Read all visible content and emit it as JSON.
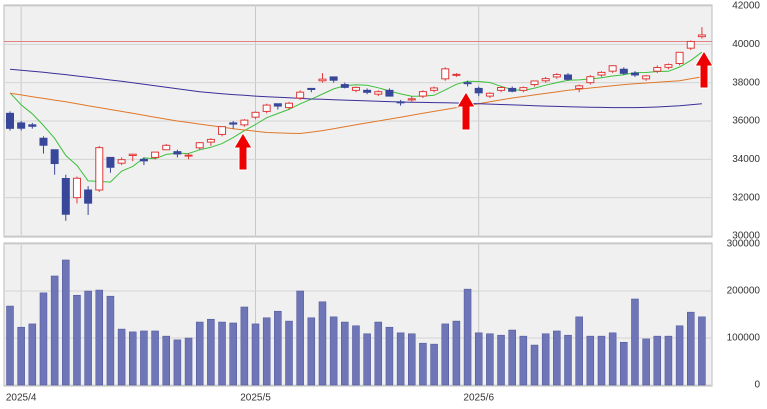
{
  "chart_data": [
    {
      "type": "candlestick",
      "open": [
        36400,
        35900,
        35800,
        35100,
        34500,
        33000,
        32000,
        32400,
        32400,
        34100,
        33800,
        34200,
        34000,
        34100,
        34500,
        34400,
        34200,
        34600,
        34900,
        35300,
        35900,
        35800,
        36200,
        36500,
        36900,
        36700,
        37200,
        37700,
        38100,
        38300,
        37900,
        37600,
        37600,
        37400,
        37600,
        37000,
        37100,
        37300,
        37600,
        38200,
        38400,
        38000,
        37700,
        37300,
        37600,
        37700,
        37600,
        37900,
        38100,
        38300,
        38400,
        37700,
        38000,
        38400,
        38600,
        38700,
        38500,
        38200,
        38600,
        38800,
        39000,
        39800,
        40400
      ],
      "high": [
        36500,
        36000,
        35900,
        35200,
        34500,
        33200,
        33100,
        32600,
        34700,
        34100,
        34100,
        34300,
        34100,
        34400,
        34800,
        34500,
        34300,
        34900,
        35100,
        35700,
        36000,
        36100,
        36500,
        36900,
        36900,
        37000,
        37600,
        37700,
        38500,
        38300,
        38000,
        37800,
        37700,
        37600,
        37700,
        37100,
        37300,
        37600,
        37800,
        38800,
        38500,
        38100,
        37800,
        37500,
        37800,
        37800,
        37800,
        38100,
        38300,
        38500,
        38500,
        37900,
        38400,
        38600,
        38900,
        38800,
        38600,
        38400,
        38900,
        39000,
        39600,
        40200,
        40900
      ],
      "low": [
        35500,
        35500,
        35600,
        34300,
        33200,
        30792,
        31700,
        31100,
        32300,
        33300,
        33700,
        33900,
        33700,
        34000,
        34500,
        34100,
        34000,
        34500,
        34700,
        35200,
        35600,
        35700,
        36100,
        36400,
        36600,
        36600,
        37100,
        37500,
        38000,
        38000,
        37700,
        37500,
        37400,
        37300,
        37300,
        36800,
        37000,
        37200,
        37500,
        38100,
        38300,
        37800,
        37300,
        37200,
        37500,
        37500,
        37500,
        37800,
        38000,
        38200,
        38100,
        37500,
        37900,
        38300,
        38500,
        38400,
        38300,
        38100,
        38500,
        38700,
        38900,
        39700,
        40300
      ],
      "close": [
        35617,
        35624,
        35725,
        34736,
        33781,
        31136,
        33012,
        31714,
        34609,
        33586,
        33982,
        34267,
        33920,
        34377,
        34730,
        34280,
        34220,
        34868,
        35039,
        35705,
        35840,
        36045,
        36452,
        36830,
        36780,
        36928,
        37503,
        37644,
        38183,
        38128,
        37755,
        37753,
        37498,
        37529,
        37299,
        36985,
        37160,
        37531,
        37724,
        38722,
        38432,
        37965,
        37470,
        37446,
        37747,
        37554,
        37741,
        38088,
        38211,
        38421,
        38173,
        37834,
        38311,
        38536,
        38885,
        38488,
        38403,
        38354,
        38790,
        38942,
        39584,
        40150,
        40487
      ],
      "up_color": "#e03a3a",
      "down_color": "#39479a",
      "series": [
        {
          "color": "#3cc03c",
          "values": [
            37469,
            36838,
            36377,
            35764,
            35097,
            34200,
            33678,
            32876,
            32850,
            32811,
            33381,
            33632,
            34073,
            34026,
            34255,
            34315,
            34305,
            34495,
            34627,
            34822,
            35134,
            35499,
            35816,
            36174,
            36389,
            36607,
            36899,
            37137,
            37408,
            37677,
            37843,
            37893,
            37863,
            37733,
            37567,
            37413,
            37294,
            37301,
            37340,
            37624,
            37914,
            38075,
            38063,
            38007,
            37812,
            37636,
            37592,
            37715,
            37868,
            38003,
            38127,
            38145,
            38190,
            38255,
            38348,
            38411,
            38525,
            38533,
            38584,
            38595,
            38815,
            39164,
            39591
          ]
        },
        {
          "color": "#e0782a",
          "values": [
            37450,
            37360,
            37270,
            37180,
            37090,
            37000,
            36900,
            36800,
            36700,
            36600,
            36500,
            36400,
            36300,
            36200,
            36100,
            36000,
            35920,
            35840,
            35760,
            35680,
            35600,
            35530,
            35470,
            35400,
            35380,
            35360,
            35350,
            35420,
            35500,
            35600,
            35700,
            35800,
            35900,
            36000,
            36100,
            36200,
            36300,
            36400,
            36500,
            36600,
            36700,
            36800,
            36900,
            37000,
            37100,
            37200,
            37280,
            37360,
            37440,
            37520,
            37600,
            37660,
            37720,
            37780,
            37840,
            37900,
            37940,
            37980,
            38020,
            38060,
            38100,
            38200,
            38300
          ]
        },
        {
          "color": "#3a2f9a",
          "values": [
            38700,
            38650,
            38600,
            38540,
            38480,
            38420,
            38350,
            38280,
            38210,
            38140,
            38070,
            38000,
            37920,
            37840,
            37760,
            37680,
            37600,
            37530,
            37470,
            37420,
            37380,
            37340,
            37300,
            37270,
            37240,
            37210,
            37180,
            37150,
            37130,
            37110,
            37090,
            37070,
            37050,
            37030,
            37010,
            36990,
            36980,
            36970,
            36960,
            36950,
            36940,
            36920,
            36900,
            36880,
            36860,
            36840,
            36820,
            36800,
            36780,
            36760,
            36740,
            36730,
            36720,
            36710,
            36700,
            36700,
            36700,
            36710,
            36730,
            36760,
            36800,
            36850,
            36900
          ]
        }
      ],
      "hline": 40150,
      "hline_color": "#e08080",
      "ylim": [
        30000,
        42000
      ],
      "yticks": [
        30000,
        32000,
        34000,
        36000,
        38000,
        40000,
        42000
      ],
      "grid": true
    },
    {
      "type": "bar",
      "categories": [
        null,
        "2025/4",
        null,
        null,
        null,
        null,
        null,
        null,
        null,
        null,
        null,
        null,
        null,
        null,
        null,
        null,
        null,
        null,
        null,
        null,
        null,
        null,
        "2025/5",
        null,
        null,
        null,
        null,
        null,
        null,
        null,
        null,
        null,
        null,
        null,
        null,
        null,
        null,
        null,
        null,
        null,
        null,
        null,
        "2025/6",
        null,
        null,
        null,
        null,
        null,
        null,
        null,
        null,
        null,
        null,
        null,
        null,
        null,
        null,
        null,
        null,
        null,
        null,
        null,
        null
      ],
      "values": [
        168000,
        123000,
        130000,
        196000,
        232000,
        266000,
        191000,
        200000,
        202000,
        189000,
        119000,
        113000,
        115000,
        115000,
        104000,
        96000,
        100000,
        134000,
        140000,
        134000,
        132000,
        166000,
        130000,
        143000,
        157000,
        136000,
        200000,
        143000,
        177000,
        145000,
        134000,
        126000,
        109000,
        134000,
        123000,
        111000,
        109000,
        89000,
        87000,
        130000,
        136000,
        204000,
        111000,
        109000,
        106000,
        117000,
        104000,
        85000,
        109000,
        115000,
        106000,
        145000,
        104000,
        104000,
        111000,
        91000,
        183000,
        98000,
        104000,
        104000,
        126000,
        155000,
        145000
      ],
      "color": "#6f76b8",
      "ylim": [
        0,
        300000
      ],
      "yticks": [
        0,
        100000,
        200000,
        300000
      ],
      "grid": true
    }
  ]
}
